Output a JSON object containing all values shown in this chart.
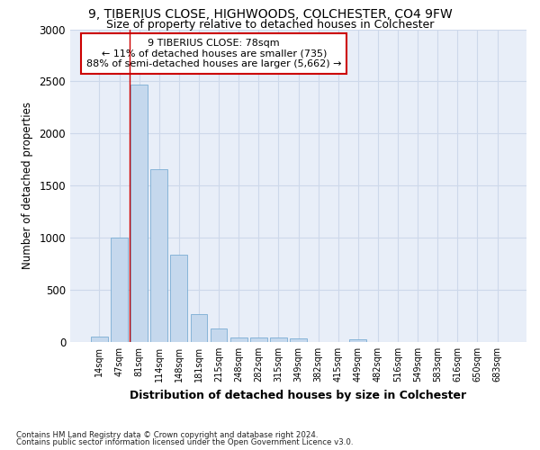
{
  "title_line1": "9, TIBERIUS CLOSE, HIGHWOODS, COLCHESTER, CO4 9FW",
  "title_line2": "Size of property relative to detached houses in Colchester",
  "xlabel": "Distribution of detached houses by size in Colchester",
  "ylabel": "Number of detached properties",
  "footnote1": "Contains HM Land Registry data © Crown copyright and database right 2024.",
  "footnote2": "Contains public sector information licensed under the Open Government Licence v3.0.",
  "annotation_title": "9 TIBERIUS CLOSE: 78sqm",
  "annotation_line2": "← 11% of detached houses are smaller (735)",
  "annotation_line3": "88% of semi-detached houses are larger (5,662) →",
  "bar_labels": [
    "14sqm",
    "47sqm",
    "81sqm",
    "114sqm",
    "148sqm",
    "181sqm",
    "215sqm",
    "248sqm",
    "282sqm",
    "315sqm",
    "349sqm",
    "382sqm",
    "415sqm",
    "449sqm",
    "482sqm",
    "516sqm",
    "549sqm",
    "583sqm",
    "616sqm",
    "650sqm",
    "683sqm"
  ],
  "bar_values": [
    55,
    1000,
    2470,
    1660,
    840,
    270,
    130,
    40,
    40,
    40,
    35,
    0,
    0,
    22,
    0,
    0,
    0,
    0,
    0,
    0,
    0
  ],
  "bar_color": "#c5d8ed",
  "bar_edge_color": "#7aadd4",
  "property_line_color": "#cc0000",
  "annotation_box_color": "#cc0000",
  "ylim": [
    0,
    3000
  ],
  "yticks": [
    0,
    500,
    1000,
    1500,
    2000,
    2500,
    3000
  ],
  "grid_color": "#cdd8ea",
  "bg_color": "#e8eef8"
}
